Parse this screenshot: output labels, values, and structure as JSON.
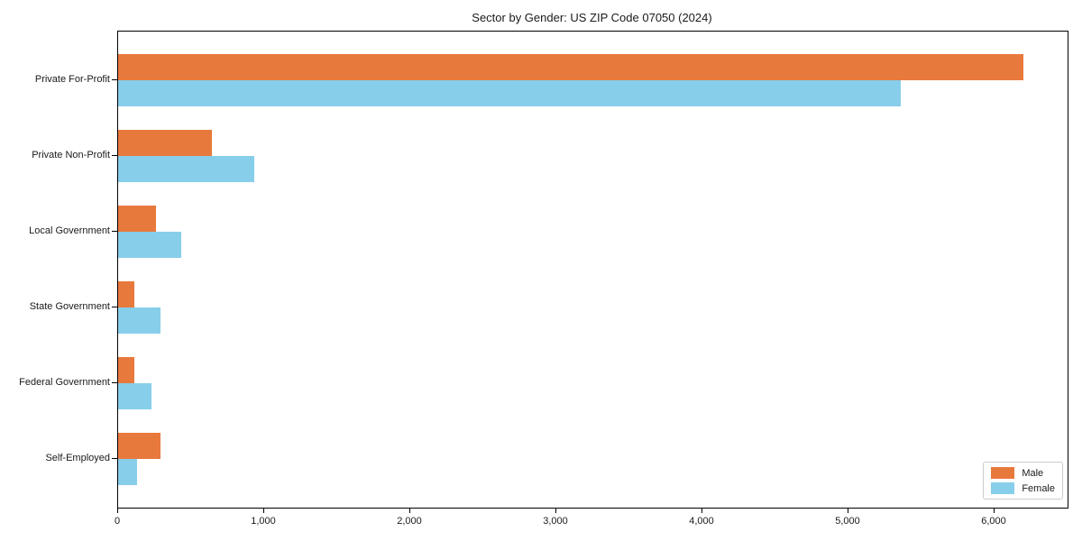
{
  "figure": {
    "background": "#ffffff",
    "text_color": "#1a1a1a",
    "axis_color": "#000000"
  },
  "chart_data": {
    "type": "bar",
    "orientation": "horizontal",
    "title": "Sector by Gender: US ZIP Code 07050 (2024)",
    "categories": [
      "Private For-Profit",
      "Private Non-Profit",
      "Local Government",
      "State Government",
      "Federal Government",
      "Self-Employed"
    ],
    "series": [
      {
        "name": "Male",
        "color": "#E8793C",
        "values": [
          6200,
          640,
          260,
          110,
          110,
          290
        ]
      },
      {
        "name": "Female",
        "color": "#87CEEB",
        "values": [
          5360,
          930,
          430,
          290,
          230,
          130
        ]
      }
    ],
    "xlabel": "",
    "ylabel": "",
    "xlim": [
      0,
      6500
    ],
    "x_ticks": [
      0,
      1000,
      2000,
      3000,
      4000,
      5000,
      6000
    ],
    "x_tick_labels": [
      "0",
      "1,000",
      "2,000",
      "3,000",
      "4,000",
      "5,000",
      "6,000"
    ],
    "grid": false,
    "legend": {
      "position": "lower-right"
    }
  }
}
